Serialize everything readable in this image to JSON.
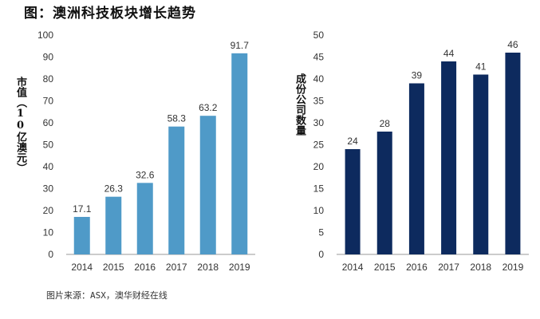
{
  "title": "图：澳洲科技板块增长趋势",
  "source": "图片来源：ASX，澳华财经在线",
  "chart_data": [
    {
      "type": "bar",
      "ylabel": "市值（10亿澳元）",
      "categories": [
        "2014",
        "2015",
        "2016",
        "2017",
        "2018",
        "2019"
      ],
      "values": [
        17.1,
        26.3,
        32.6,
        58.3,
        63.2,
        91.7
      ],
      "data_labels": [
        "17.1",
        "26.3",
        "32.6",
        "58.3",
        "63.2",
        "91.7"
      ],
      "ylim": [
        0,
        100
      ],
      "yticks": [
        0,
        10,
        20,
        30,
        40,
        50,
        60,
        70,
        80,
        90,
        100
      ],
      "color": "#4f9ac8",
      "grid": false,
      "legend": "none"
    },
    {
      "type": "bar",
      "ylabel": "成份公司数量",
      "categories": [
        "2014",
        "2015",
        "2016",
        "2017",
        "2018",
        "2019"
      ],
      "values": [
        24,
        28,
        39,
        44,
        41,
        46
      ],
      "data_labels": [
        "24",
        "28",
        "39",
        "44",
        "41",
        "46"
      ],
      "ylim": [
        0,
        50
      ],
      "yticks": [
        0,
        5,
        10,
        15,
        20,
        25,
        30,
        35,
        40,
        45,
        50
      ],
      "color": "#0d2a5e",
      "grid": false,
      "legend": "none"
    }
  ]
}
